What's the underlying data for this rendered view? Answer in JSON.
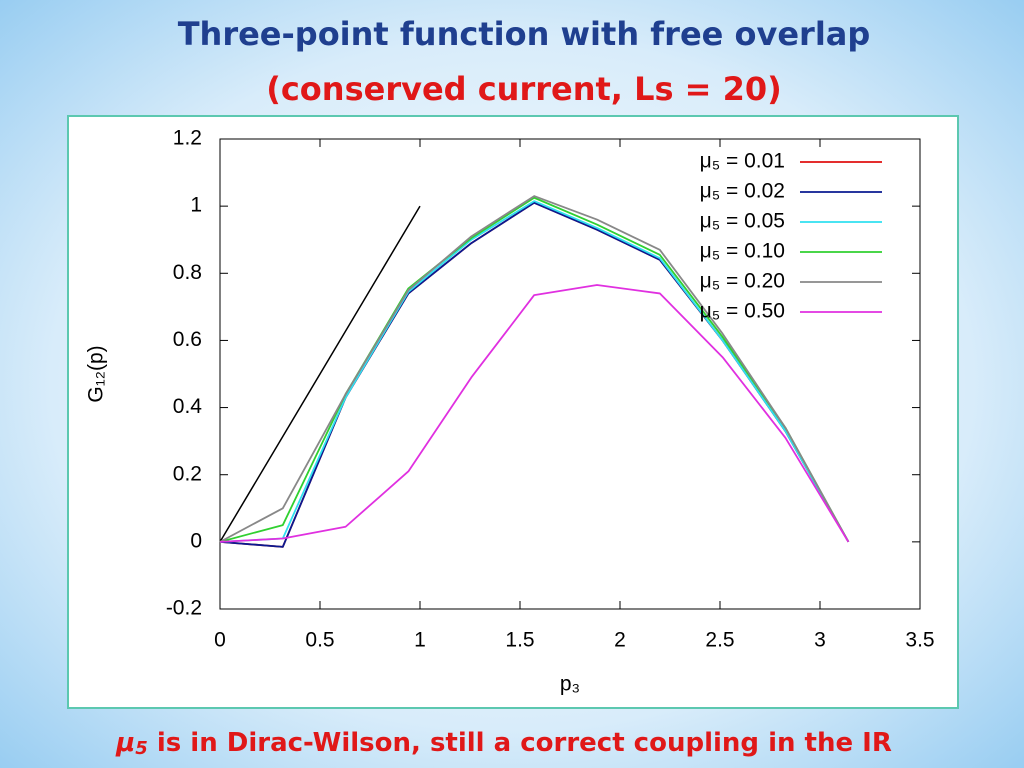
{
  "title": "Three-point function with free overlap",
  "subtitle": "(conserved current, Ls = 20)",
  "footer": {
    "symbol": "μ",
    "subscript": "5",
    "text": " is in Dirac-Wilson, still a correct coupling in the IR"
  },
  "chart_data": {
    "type": "line",
    "x_label": "p₃",
    "y_label": "G₁₂(p)",
    "xlim": [
      0,
      3.5
    ],
    "ylim": [
      -0.2,
      1.2
    ],
    "xticks": [
      0,
      0.5,
      1,
      1.5,
      2,
      2.5,
      3,
      3.5
    ],
    "yticks": [
      -0.2,
      0,
      0.2,
      0.4,
      0.6,
      0.8,
      1,
      1.2
    ],
    "grid": false,
    "legend": "top-right",
    "x": [
      0,
      0.314,
      0.628,
      0.942,
      1.257,
      1.571,
      1.885,
      2.199,
      2.513,
      2.827,
      3.142
    ],
    "series": [
      {
        "name": "μ₅ = 0.01",
        "color": "#e01010",
        "values": [
          0,
          -0.015,
          0.43,
          0.74,
          0.89,
          1.01,
          0.93,
          0.84,
          0.6,
          0.33,
          0
        ]
      },
      {
        "name": "μ₅ = 0.02",
        "color": "#0a1a90",
        "values": [
          0,
          -0.015,
          0.43,
          0.74,
          0.89,
          1.01,
          0.93,
          0.84,
          0.6,
          0.33,
          0
        ]
      },
      {
        "name": "μ₅ = 0.05",
        "color": "#30e0f0",
        "values": [
          0,
          0.01,
          0.43,
          0.745,
          0.9,
          1.015,
          0.935,
          0.845,
          0.6,
          0.33,
          0
        ]
      },
      {
        "name": "μ₅ = 0.10",
        "color": "#30d030",
        "values": [
          0,
          0.05,
          0.44,
          0.755,
          0.905,
          1.025,
          0.945,
          0.855,
          0.61,
          0.34,
          0
        ]
      },
      {
        "name": "μ₅ = 0.20",
        "color": "#888888",
        "values": [
          0,
          0.1,
          0.44,
          0.75,
          0.91,
          1.03,
          0.96,
          0.87,
          0.62,
          0.34,
          0
        ]
      },
      {
        "name": "μ₅ = 0.50",
        "color": "#e030e0",
        "values": [
          0,
          0.01,
          0.045,
          0.21,
          0.49,
          0.735,
          0.765,
          0.74,
          0.55,
          0.31,
          0
        ]
      }
    ],
    "reference_line": {
      "color": "#000000",
      "x": [
        0,
        1
      ],
      "values": [
        0,
        1
      ]
    }
  }
}
